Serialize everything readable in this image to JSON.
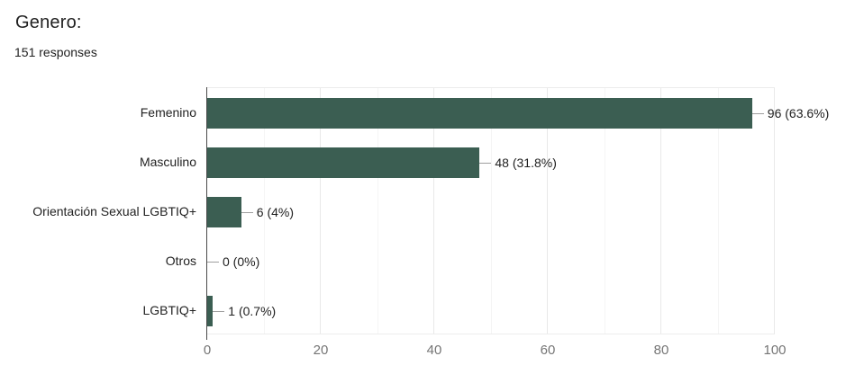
{
  "chart_data": {
    "type": "bar",
    "orientation": "horizontal",
    "title": "Genero:",
    "subtitle": "151 responses",
    "categories": [
      "Femenino",
      "Masculino",
      "Orientación Sexual LGBTIQ+",
      "Otros",
      "LGBTIQ+"
    ],
    "values": [
      96,
      48,
      6,
      0,
      1
    ],
    "value_labels": [
      "96 (63.6%)",
      "48 (31.8%)",
      "6 (4%)",
      "0 (0%)",
      "1 (0.7%)"
    ],
    "xlim": [
      0,
      100
    ],
    "x_ticks": [
      0,
      20,
      40,
      60,
      80,
      100
    ],
    "x_tick_labels": [
      "0",
      "20",
      "40",
      "60",
      "80",
      "100"
    ],
    "grid": true,
    "legend": "none",
    "bar_color": "#3b5e52",
    "axis_color": "#4a4a4a",
    "gridline_color": "#e9e9e9",
    "tick_label_color": "#757575",
    "text_color": "#212121"
  }
}
